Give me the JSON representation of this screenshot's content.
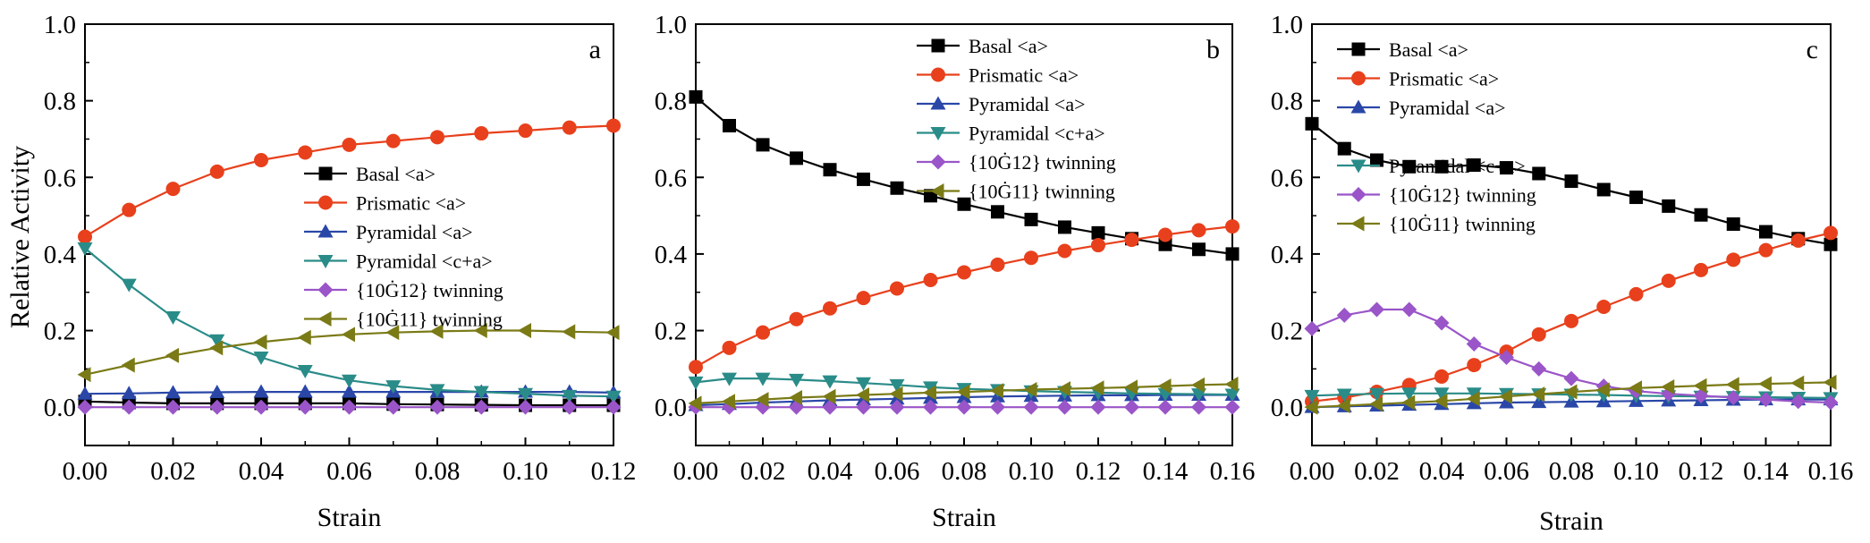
{
  "figure": {
    "ylabel": "Relative Activity",
    "xlabel": "Strain"
  },
  "series_styles": [
    {
      "name": "Basal <a>",
      "color": "#000000",
      "marker": "square"
    },
    {
      "name": "Prismatic <a>",
      "color": "#e8401c",
      "marker": "circle"
    },
    {
      "name": "Pyramidal <a>",
      "color": "#2a47a8",
      "marker": "triangle-up"
    },
    {
      "name": "Pyramidal <c+a>",
      "color": "#2a8c88",
      "marker": "triangle-down"
    },
    {
      "name": "{10Ġ12} twinning",
      "color": "#9a55c8",
      "marker": "diamond"
    },
    {
      "name": "{10Ġ11} twinning",
      "color": "#7a7a16",
      "marker": "triangle-left"
    }
  ],
  "chart_data": [
    {
      "type": "line",
      "panel": "a",
      "xlabel": "Strain",
      "ylabel": "Relative Activity",
      "xlim": [
        0,
        0.12
      ],
      "ylim": [
        -0.1,
        1.0
      ],
      "x_ticks": [
        "0.00",
        "0.02",
        "0.04",
        "0.06",
        "0.08",
        "0.10",
        "0.12"
      ],
      "y_ticks": [
        "0.0",
        "0.2",
        "0.4",
        "0.6",
        "0.8",
        "1.0"
      ],
      "grid": false,
      "legend": "center-right",
      "x": [
        0,
        0.01,
        0.02,
        0.03,
        0.04,
        0.05,
        0.06,
        0.07,
        0.08,
        0.09,
        0.1,
        0.11,
        0.12
      ],
      "series": [
        {
          "name": "Basal <a>",
          "values": [
            0.015,
            0.012,
            0.01,
            0.01,
            0.01,
            0.01,
            0.01,
            0.008,
            0.007,
            0.006,
            0.005,
            0.005,
            0.005
          ]
        },
        {
          "name": "Prismatic <a>",
          "values": [
            0.445,
            0.515,
            0.57,
            0.615,
            0.645,
            0.665,
            0.685,
            0.695,
            0.705,
            0.715,
            0.722,
            0.73,
            0.735
          ]
        },
        {
          "name": "Pyramidal <a>",
          "values": [
            0.035,
            0.036,
            0.038,
            0.039,
            0.04,
            0.04,
            0.04,
            0.04,
            0.04,
            0.04,
            0.04,
            0.04,
            0.038
          ]
        },
        {
          "name": "Pyramidal <c+a>",
          "values": [
            0.415,
            0.32,
            0.235,
            0.175,
            0.13,
            0.095,
            0.07,
            0.055,
            0.045,
            0.04,
            0.035,
            0.03,
            0.028
          ]
        },
        {
          "name": "{10Ġ12} twinning",
          "values": [
            0.0,
            0.0,
            0.0,
            0.0,
            0.0,
            0.0,
            0.0,
            0.0,
            0.0,
            0.0,
            0.0,
            0.0,
            0.0
          ]
        },
        {
          "name": "{10Ġ11} twinning",
          "values": [
            0.085,
            0.11,
            0.135,
            0.155,
            0.17,
            0.182,
            0.19,
            0.195,
            0.198,
            0.2,
            0.2,
            0.197,
            0.195
          ]
        }
      ]
    },
    {
      "type": "line",
      "panel": "b",
      "xlabel": "Strain",
      "ylabel": "",
      "xlim": [
        0,
        0.16
      ],
      "ylim": [
        -0.1,
        1.0
      ],
      "x_ticks": [
        "0.00",
        "0.02",
        "0.04",
        "0.06",
        "0.08",
        "0.10",
        "0.12",
        "0.14",
        "0.16"
      ],
      "y_ticks": [
        "0.0",
        "0.2",
        "0.4",
        "0.6",
        "0.8",
        "1.0"
      ],
      "grid": false,
      "legend": "top-center",
      "x": [
        0,
        0.01,
        0.02,
        0.03,
        0.04,
        0.05,
        0.06,
        0.07,
        0.08,
        0.09,
        0.1,
        0.11,
        0.12,
        0.13,
        0.14,
        0.15,
        0.16
      ],
      "series": [
        {
          "name": "Basal <a>",
          "values": [
            0.81,
            0.735,
            0.685,
            0.65,
            0.62,
            0.595,
            0.572,
            0.552,
            0.53,
            0.51,
            0.49,
            0.47,
            0.455,
            0.44,
            0.425,
            0.412,
            0.4
          ]
        },
        {
          "name": "Prismatic <a>",
          "values": [
            0.105,
            0.155,
            0.195,
            0.23,
            0.258,
            0.285,
            0.31,
            0.332,
            0.352,
            0.372,
            0.39,
            0.408,
            0.423,
            0.437,
            0.45,
            0.462,
            0.472
          ]
        },
        {
          "name": "Pyramidal <a>",
          "values": [
            0.005,
            0.008,
            0.012,
            0.015,
            0.018,
            0.02,
            0.022,
            0.024,
            0.026,
            0.028,
            0.029,
            0.03,
            0.031,
            0.031,
            0.032,
            0.032,
            0.032
          ]
        },
        {
          "name": "Pyramidal <c+a>",
          "values": [
            0.065,
            0.075,
            0.075,
            0.072,
            0.068,
            0.063,
            0.058,
            0.052,
            0.048,
            0.045,
            0.042,
            0.04,
            0.038,
            0.036,
            0.035,
            0.034,
            0.033
          ]
        },
        {
          "name": "{10Ġ12} twinning",
          "values": [
            0.0,
            0.0,
            0.0,
            0.0,
            0.0,
            0.0,
            0.0,
            0.0,
            0.0,
            0.0,
            0.0,
            0.0,
            0.0,
            0.0,
            0.0,
            0.0,
            0.0
          ]
        },
        {
          "name": "{10Ġ11} twinning",
          "values": [
            0.01,
            0.015,
            0.02,
            0.025,
            0.028,
            0.032,
            0.035,
            0.038,
            0.04,
            0.043,
            0.046,
            0.048,
            0.05,
            0.052,
            0.055,
            0.058,
            0.06
          ]
        }
      ]
    },
    {
      "type": "line",
      "panel": "c",
      "xlabel": "Strain",
      "ylabel": "",
      "xlim": [
        0,
        0.16
      ],
      "ylim": [
        -0.1,
        1.0
      ],
      "x_ticks": [
        "0.00",
        "0.02",
        "0.04",
        "0.06",
        "0.08",
        "0.10",
        "0.12",
        "0.14",
        "0.16"
      ],
      "y_ticks": [
        "0.0",
        "0.2",
        "0.4",
        "0.6",
        "0.8",
        "1.0"
      ],
      "grid": false,
      "legend": "top-left",
      "x": [
        0,
        0.01,
        0.02,
        0.03,
        0.04,
        0.05,
        0.06,
        0.07,
        0.08,
        0.09,
        0.1,
        0.11,
        0.12,
        0.13,
        0.14,
        0.15,
        0.16
      ],
      "series": [
        {
          "name": "Basal <a>",
          "values": [
            0.74,
            0.675,
            0.645,
            0.628,
            0.628,
            0.632,
            0.625,
            0.61,
            0.59,
            0.568,
            0.548,
            0.525,
            0.502,
            0.478,
            0.458,
            0.44,
            0.425
          ]
        },
        {
          "name": "Prismatic <a>",
          "values": [
            0.015,
            0.025,
            0.04,
            0.058,
            0.08,
            0.11,
            0.145,
            0.19,
            0.225,
            0.262,
            0.295,
            0.33,
            0.358,
            0.385,
            0.41,
            0.435,
            0.455
          ]
        },
        {
          "name": "Pyramidal <a>",
          "values": [
            0.0,
            0.002,
            0.004,
            0.006,
            0.008,
            0.01,
            0.012,
            0.013,
            0.014,
            0.015,
            0.016,
            0.017,
            0.018,
            0.019,
            0.02,
            0.02,
            0.02
          ]
        },
        {
          "name": "Pyramidal <c+a>",
          "values": [
            0.03,
            0.033,
            0.035,
            0.036,
            0.036,
            0.036,
            0.035,
            0.034,
            0.033,
            0.032,
            0.03,
            0.029,
            0.028,
            0.027,
            0.026,
            0.025,
            0.024
          ]
        },
        {
          "name": "{10Ġ12} twinning",
          "values": [
            0.205,
            0.24,
            0.255,
            0.255,
            0.22,
            0.165,
            0.13,
            0.1,
            0.075,
            0.055,
            0.042,
            0.035,
            0.03,
            0.025,
            0.02,
            0.015,
            0.012
          ]
        },
        {
          "name": "{10Ġ11} twinning",
          "values": [
            0.0,
            0.004,
            0.008,
            0.012,
            0.016,
            0.022,
            0.028,
            0.034,
            0.04,
            0.045,
            0.05,
            0.053,
            0.056,
            0.059,
            0.061,
            0.063,
            0.065
          ]
        }
      ]
    }
  ]
}
